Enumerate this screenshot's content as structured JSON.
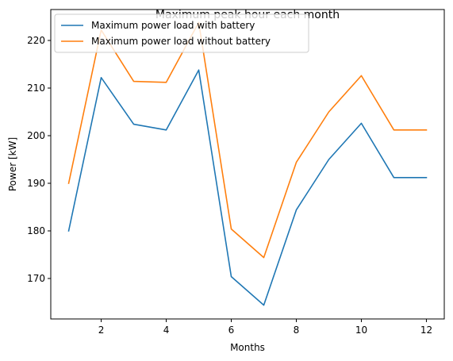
{
  "chart_data": {
    "type": "line",
    "title": "Maximum peak hour each month",
    "xlabel": "Months",
    "ylabel": "Power [kW]",
    "x": [
      1,
      2,
      3,
      4,
      5,
      6,
      7,
      8,
      9,
      10,
      11,
      12
    ],
    "xlim": [
      0.45,
      12.55
    ],
    "ylim": [
      161.5,
      226.5
    ],
    "xticks": [
      2,
      4,
      6,
      8,
      10,
      12
    ],
    "yticks": [
      170,
      180,
      190,
      200,
      210,
      220
    ],
    "grid": false,
    "legend_position": "upper-left",
    "series": [
      {
        "name": "Maximum power load with battery",
        "color": "#1f77b4",
        "values": [
          180.0,
          212.2,
          202.4,
          201.2,
          213.8,
          170.4,
          164.4,
          184.4,
          195.0,
          202.6,
          191.2,
          191.2
        ]
      },
      {
        "name": "Maximum power load without battery",
        "color": "#ff7f0e",
        "values": [
          190.0,
          222.2,
          211.4,
          211.2,
          223.8,
          180.4,
          174.4,
          194.4,
          205.0,
          212.6,
          201.2,
          201.2
        ]
      }
    ]
  }
}
